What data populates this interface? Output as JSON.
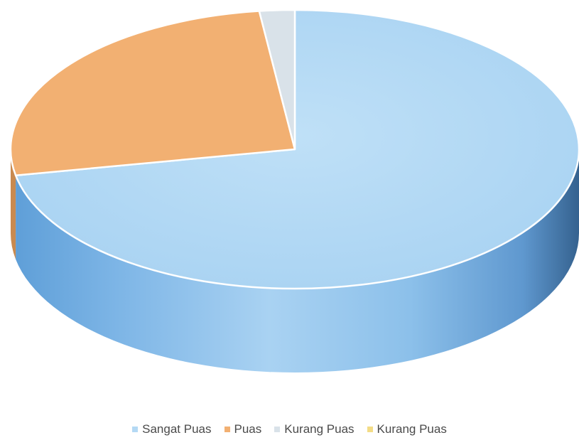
{
  "chart_data": {
    "type": "pie",
    "style": "3d",
    "title": "",
    "categories": [
      "Sangat Puas",
      "Puas",
      "Kurang Puas",
      "Kurang Puas"
    ],
    "values": [
      72,
      26,
      2,
      0
    ],
    "colors": [
      "#b4d9f4",
      "#f2b072",
      "#d9e2e9",
      "#f3dc86"
    ],
    "side_colors": [
      "#6fa9dd",
      "#c98a4f",
      "#aebfcc",
      "#c9b45a"
    ],
    "legend_position": "bottom"
  }
}
